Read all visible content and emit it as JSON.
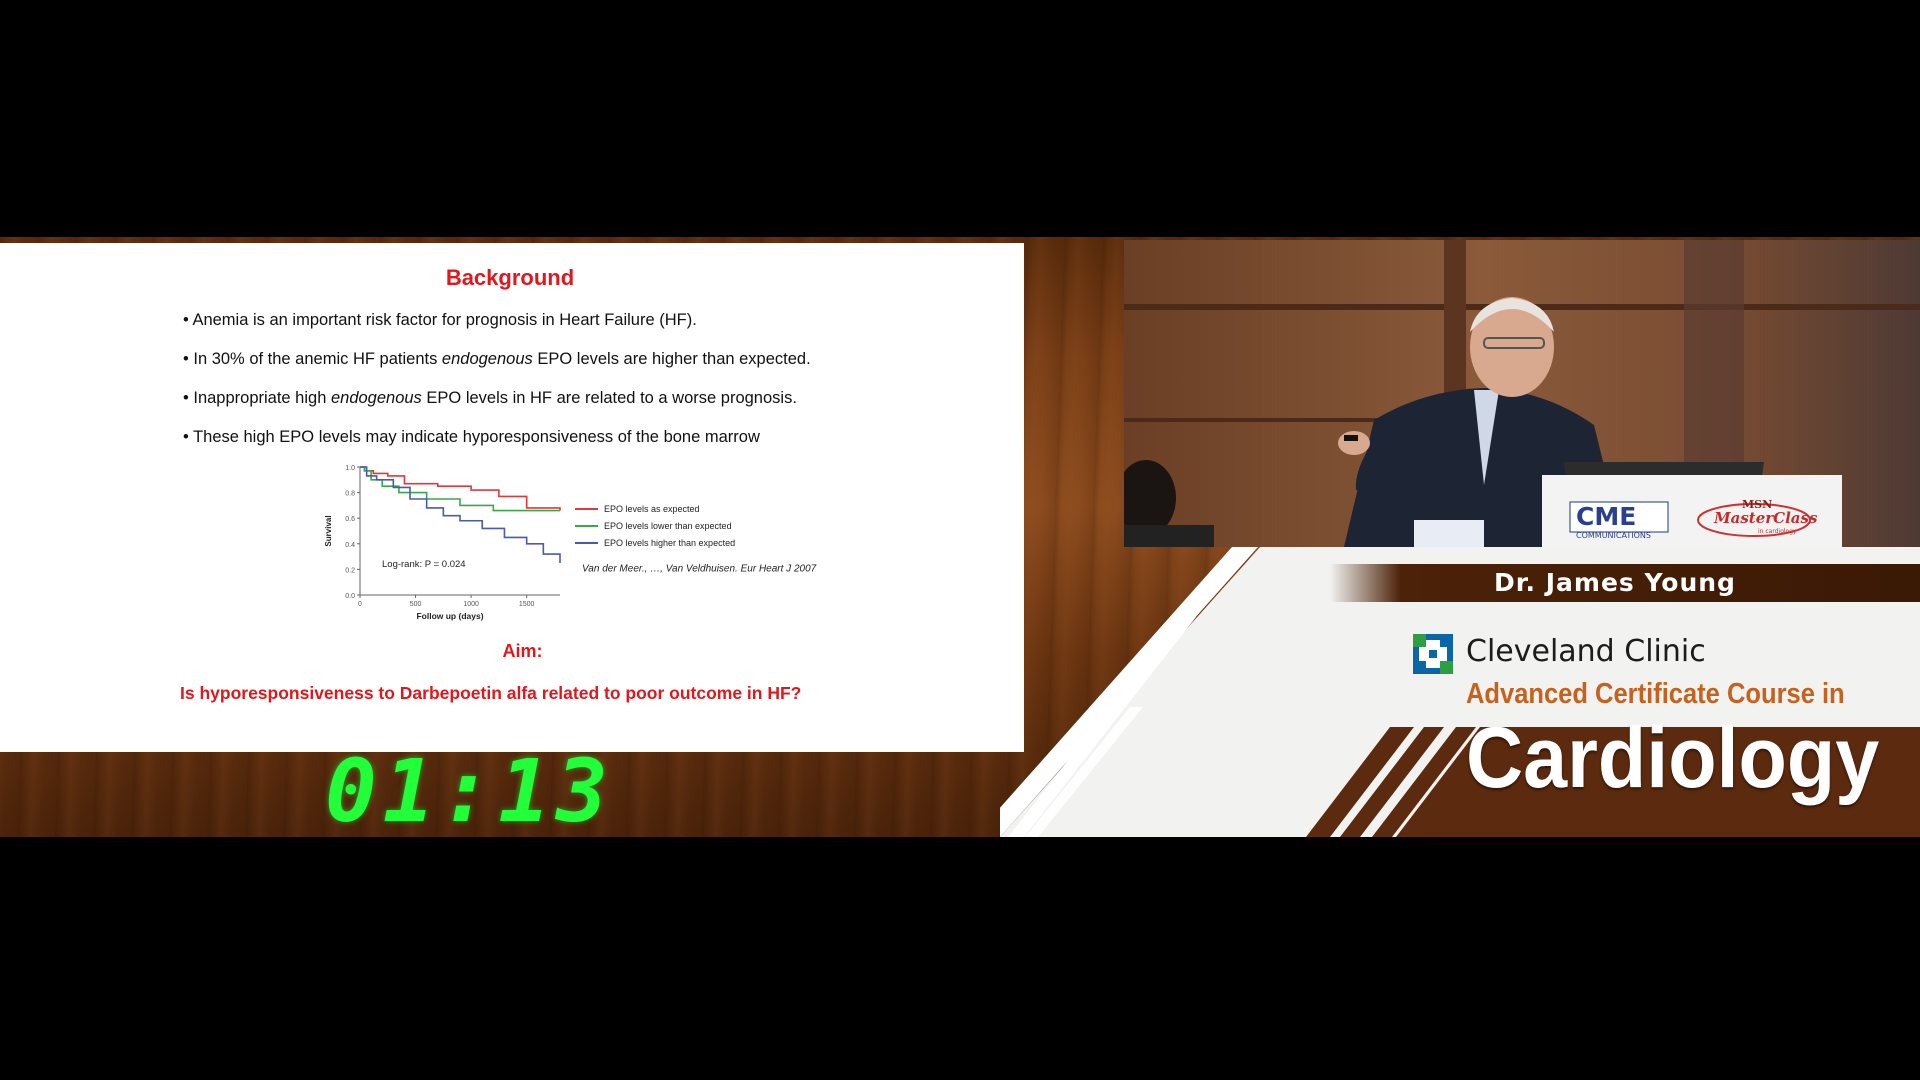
{
  "slide": {
    "title": "Background",
    "bullets": [
      {
        "pre": "• Anemia is an important risk factor for prognosis in Heart Failure (HF).",
        "em": "",
        "post": ""
      },
      {
        "pre": "• In 30% of the anemic HF patients ",
        "em": "endogenous",
        "post": " EPO levels are higher than expected."
      },
      {
        "pre": "• Inappropriate high ",
        "em": "endogenous",
        "post": " EPO levels in HF are related to a worse prognosis."
      },
      {
        "pre": "• These high EPO levels may indicate hyporesponsiveness of the bone marrow",
        "em": "",
        "post": ""
      }
    ],
    "aim_label": "Aim:",
    "aim_question": "Is hyporesponsiveness to Darbepoetin alfa related to poor outcome in HF?"
  },
  "chart_data": {
    "type": "line",
    "xlabel": "Follow up (days)",
    "ylabel": "Survival",
    "xlim": [
      0,
      1800
    ],
    "ylim": [
      0,
      1.0
    ],
    "x_ticks": [
      "0",
      "500",
      "1000",
      "1500"
    ],
    "y_ticks": [
      "0.0",
      "0.2",
      "0.4",
      "0.6",
      "0.8",
      "1.0"
    ],
    "annotation": "Log-rank:  P = 0.024",
    "citation": "Van der Meer., …, Van Veldhuisen.  Eur Heart J 2007",
    "series": [
      {
        "name": "EPO levels as expected",
        "color": "#e0393a",
        "points": [
          [
            0,
            1.0
          ],
          [
            40,
            0.97
          ],
          [
            120,
            0.95
          ],
          [
            250,
            0.93
          ],
          [
            400,
            0.87
          ],
          [
            700,
            0.85
          ],
          [
            1000,
            0.82
          ],
          [
            1250,
            0.77
          ],
          [
            1500,
            0.68
          ],
          [
            1800,
            0.66
          ]
        ]
      },
      {
        "name": "EPO levels lower than expected",
        "color": "#3aa84a",
        "points": [
          [
            0,
            1.0
          ],
          [
            40,
            0.97
          ],
          [
            100,
            0.9
          ],
          [
            200,
            0.85
          ],
          [
            350,
            0.8
          ],
          [
            600,
            0.75
          ],
          [
            900,
            0.7
          ],
          [
            1200,
            0.66
          ],
          [
            1500,
            0.66
          ],
          [
            1800,
            0.66
          ]
        ]
      },
      {
        "name": "EPO levels higher than expected",
        "color": "#4a5ab0",
        "points": [
          [
            0,
            1.0
          ],
          [
            60,
            0.93
          ],
          [
            150,
            0.9
          ],
          [
            300,
            0.84
          ],
          [
            450,
            0.75
          ],
          [
            600,
            0.68
          ],
          [
            750,
            0.62
          ],
          [
            900,
            0.58
          ],
          [
            1100,
            0.52
          ],
          [
            1300,
            0.45
          ],
          [
            1500,
            0.4
          ],
          [
            1650,
            0.32
          ],
          [
            1800,
            0.25
          ]
        ]
      }
    ]
  },
  "timer": "01:13",
  "speaker": {
    "name": "Dr. James Young"
  },
  "branding": {
    "org": "Cleveland Clinic",
    "course_line": "Advanced Certificate Course in",
    "course_name": "Cardiology",
    "podium_logo_1": "CME",
    "podium_logo_1_sub": "COMMUNICATIONS",
    "podium_logo_2_top": "MSN",
    "podium_logo_2": "MasterClass",
    "podium_logo_2_sub": "in cardiology",
    "brand_orange": "#c6621e",
    "brand_blue": "#0b66a8",
    "brand_green": "#2e9e45"
  }
}
